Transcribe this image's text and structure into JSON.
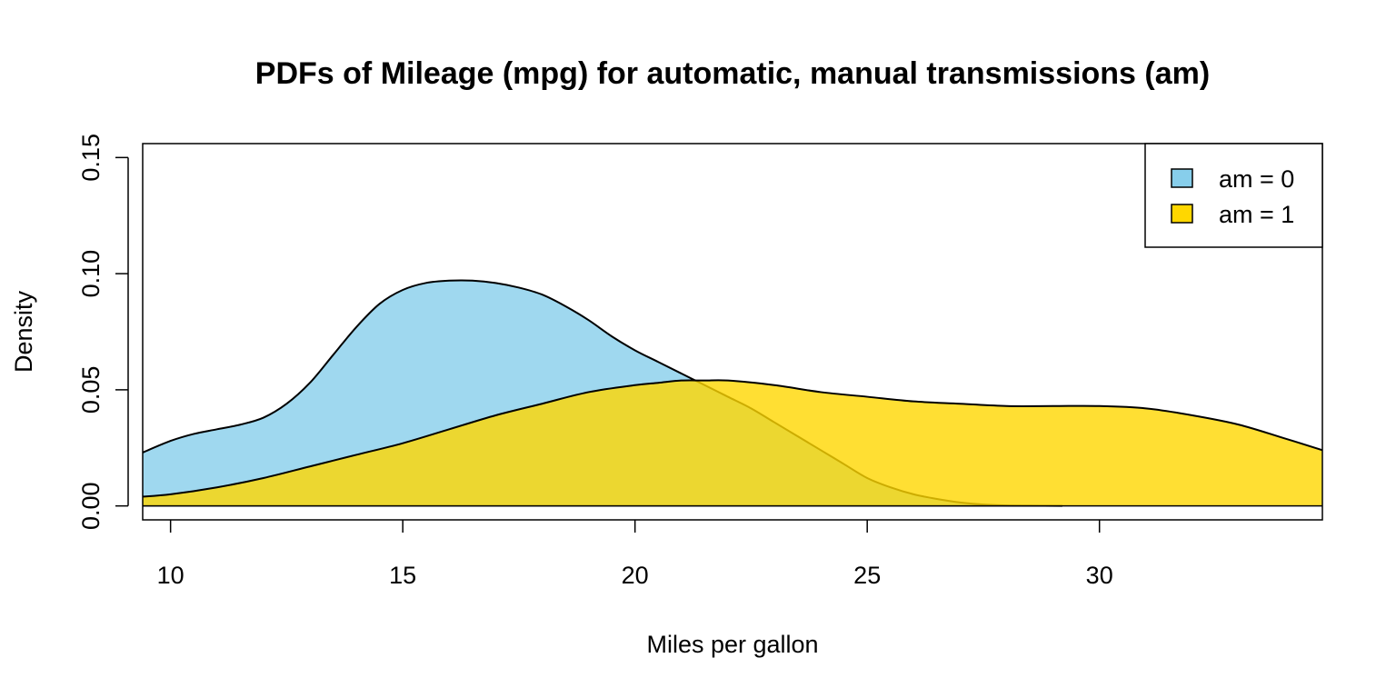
{
  "chart_data": {
    "type": "area",
    "title": "PDFs of Mileage (mpg) for automatic, manual transmissions (am)",
    "xlabel": "Miles per gallon",
    "ylabel": "Density",
    "xlim": [
      9.4,
      34.8
    ],
    "ylim": [
      -0.006,
      0.156
    ],
    "x_ticks": [
      10,
      15,
      20,
      25,
      30
    ],
    "y_ticks": [
      0.0,
      0.05,
      0.1,
      0.15
    ],
    "x_tick_labels": [
      "10",
      "15",
      "20",
      "25",
      "30"
    ],
    "y_tick_labels": [
      "0.00",
      "0.05",
      "0.10",
      "0.15"
    ],
    "grid": false,
    "legend_position": "top-right",
    "series": [
      {
        "name": "am = 0",
        "color": "#87CEEB",
        "x": [
          9.4,
          10.0,
          10.5,
          11.0,
          11.5,
          12.0,
          12.5,
          13.0,
          13.5,
          14.0,
          14.5,
          15.0,
          15.5,
          16.0,
          16.5,
          17.0,
          17.5,
          18.0,
          18.5,
          19.0,
          19.5,
          20.0,
          20.5,
          21.0,
          21.5,
          22.0,
          22.5,
          23.0,
          23.5,
          24.0,
          24.5,
          25.0,
          25.5,
          26.0,
          26.5,
          27.0,
          27.5,
          28.0,
          28.5,
          29.2
        ],
        "values": [
          0.023,
          0.028,
          0.031,
          0.033,
          0.035,
          0.038,
          0.044,
          0.053,
          0.065,
          0.077,
          0.087,
          0.093,
          0.096,
          0.097,
          0.097,
          0.096,
          0.094,
          0.091,
          0.086,
          0.08,
          0.073,
          0.067,
          0.062,
          0.057,
          0.052,
          0.047,
          0.042,
          0.036,
          0.03,
          0.024,
          0.018,
          0.012,
          0.008,
          0.005,
          0.003,
          0.0015,
          0.0006,
          0.0002,
          0.0001,
          0.0
        ]
      },
      {
        "name": "am = 1",
        "color": "#FFD700",
        "x": [
          9.4,
          10.0,
          11.0,
          12.0,
          13.0,
          14.0,
          15.0,
          16.0,
          17.0,
          18.0,
          19.0,
          20.0,
          20.5,
          21.0,
          21.5,
          22.0,
          23.0,
          24.0,
          25.0,
          26.0,
          27.0,
          28.0,
          29.0,
          30.0,
          31.0,
          32.0,
          33.0,
          34.0,
          34.8
        ],
        "values": [
          0.004,
          0.005,
          0.008,
          0.012,
          0.017,
          0.022,
          0.027,
          0.033,
          0.039,
          0.044,
          0.049,
          0.052,
          0.053,
          0.054,
          0.054,
          0.054,
          0.052,
          0.049,
          0.047,
          0.045,
          0.044,
          0.043,
          0.043,
          0.043,
          0.042,
          0.039,
          0.035,
          0.029,
          0.024
        ]
      }
    ]
  }
}
